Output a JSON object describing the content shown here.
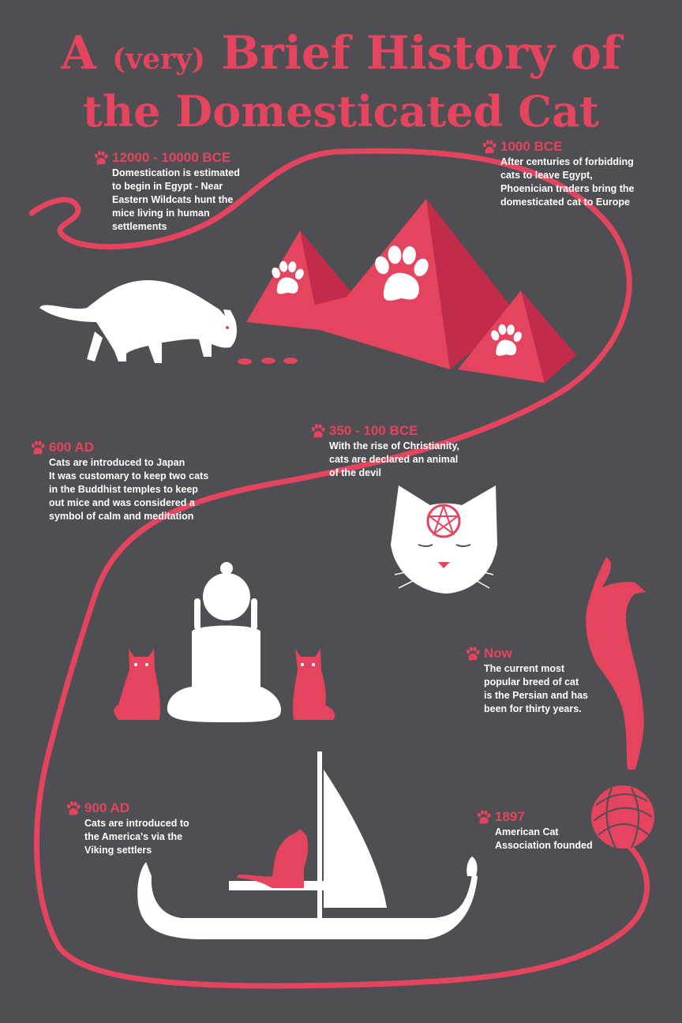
{
  "title": {
    "line1_a": "A",
    "line1_small": "(very)",
    "line1_b": "Brief History of",
    "line2": "the Domesticated Cat"
  },
  "colors": {
    "background": "#4f4e52",
    "accent": "#e5445f",
    "accent_dark": "#c22b4a",
    "text": "#ffffff"
  },
  "events": [
    {
      "date": "12000 - 10000 BCE",
      "text": "Domestication is estimated\nto begin in Egypt - Near\nEastern Wildcats hunt the\nmice living in human\nsettlements"
    },
    {
      "date": "1000 BCE",
      "text": "After centuries of forbidding\ncats to leave Egypt,\nPhoenician traders bring the\ndomesticated cat to Europe"
    },
    {
      "date": "600 AD",
      "text": "Cats are introduced to Japan\nIt was customary to keep two cats\nin the Buddhist temples to keep\nout mice and was considered a\nsymbol of calm and meditation"
    },
    {
      "date": "350 - 100 BCE",
      "text": "With the rise of Christianity,\ncats are declared an animal\nof the devil"
    },
    {
      "date": "Now",
      "text": "The current most\npopular breed of cat\nis the Persian and has\nbeen for thirty years."
    },
    {
      "date": "900 AD",
      "text": "Cats are introduced to\nthe America's via the\nViking settlers"
    },
    {
      "date": "1897",
      "text": "American Cat\nAssociation founded"
    }
  ],
  "icons": [
    "paw-icon",
    "cat-hunting-icon",
    "pyramid-icon",
    "mouse-icon",
    "pentagram-cat-icon",
    "buddha-icon",
    "sitting-cat-icon",
    "falling-cat-icon",
    "yarn-ball-icon",
    "viking-ship-icon"
  ]
}
